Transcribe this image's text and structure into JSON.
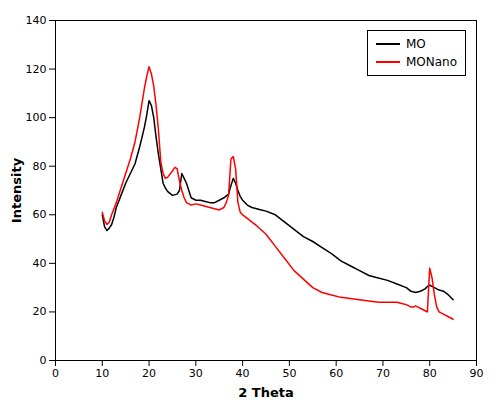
{
  "chart_data": {
    "type": "line",
    "xlabel": "2 Theta",
    "ylabel": "Intensity",
    "xlim": [
      0,
      90
    ],
    "ylim": [
      0,
      140
    ],
    "xticks": [
      0,
      10,
      20,
      30,
      40,
      50,
      60,
      70,
      80,
      90
    ],
    "yticks": [
      0,
      20,
      40,
      60,
      80,
      100,
      120,
      140
    ],
    "grid": false,
    "legend": "upper right",
    "series": [
      {
        "name": "MO",
        "color": "black",
        "x": [
          10.0,
          10.5,
          11.0,
          11.5,
          12.0,
          12.5,
          13.0,
          14.0,
          15.0,
          16.0,
          17.0,
          18.0,
          19.0,
          19.5,
          20.0,
          20.5,
          21.0,
          21.5,
          22.0,
          22.5,
          23.0,
          23.5,
          24.0,
          25.0,
          26.0,
          26.5,
          27.0,
          27.5,
          28.0,
          28.5,
          29.0,
          30.0,
          31.0,
          32.0,
          33.0,
          34.0,
          35.0,
          36.0,
          37.0,
          37.5,
          38.0,
          38.5,
          39.0,
          39.5,
          40.0,
          41.0,
          42.0,
          43.0,
          44.0,
          45.0,
          47.0,
          49.0,
          51.0,
          53.0,
          55.0,
          57.0,
          59.0,
          61.0,
          63.0,
          65.0,
          67.0,
          69.0,
          71.0,
          73.0,
          75.0,
          76.0,
          77.0,
          78.0,
          79.0,
          79.5,
          80.0,
          80.5,
          81.0,
          81.5,
          82.0,
          83.0,
          84.0,
          85.0
        ],
        "values": [
          60.0,
          55.0,
          53.5,
          54.5,
          56.0,
          59.0,
          63.0,
          68.0,
          73.0,
          77.0,
          81.0,
          88.0,
          96.0,
          101.0,
          107.0,
          105.0,
          100.0,
          92.0,
          85.0,
          79.0,
          73.0,
          71.0,
          69.5,
          68.0,
          68.5,
          70.0,
          77.0,
          75.0,
          73.0,
          70.0,
          67.0,
          66.0,
          66.0,
          65.5,
          65.0,
          65.0,
          66.0,
          67.0,
          68.5,
          72.0,
          75.0,
          73.0,
          70.0,
          67.5,
          66.0,
          64.0,
          63.0,
          62.5,
          62.0,
          61.5,
          60.0,
          57.0,
          54.0,
          51.0,
          49.0,
          46.5,
          44.0,
          41.0,
          39.0,
          37.0,
          35.0,
          34.0,
          33.0,
          31.5,
          30.0,
          28.5,
          28.0,
          28.5,
          29.5,
          30.5,
          31.0,
          30.5,
          30.0,
          29.5,
          29.0,
          28.5,
          27.0,
          25.0
        ]
      },
      {
        "name": "MONano",
        "color": "red",
        "x": [
          10.0,
          10.5,
          11.0,
          11.5,
          12.0,
          13.0,
          14.0,
          15.0,
          16.0,
          17.0,
          18.0,
          19.0,
          19.5,
          20.0,
          20.5,
          21.0,
          21.5,
          22.0,
          22.5,
          23.0,
          23.5,
          24.0,
          25.0,
          25.5,
          26.0,
          26.5,
          27.0,
          27.5,
          28.0,
          29.0,
          30.0,
          31.0,
          32.0,
          33.0,
          34.0,
          35.0,
          36.0,
          36.5,
          37.0,
          37.5,
          38.0,
          38.5,
          39.0,
          39.5,
          40.0,
          41.0,
          42.0,
          43.0,
          45.0,
          47.0,
          49.0,
          51.0,
          53.0,
          55.0,
          57.0,
          59.0,
          61.0,
          63.0,
          65.0,
          67.0,
          69.0,
          71.0,
          73.0,
          74.0,
          75.0,
          75.5,
          76.0,
          76.5,
          77.0,
          77.5,
          78.0,
          78.5,
          79.0,
          79.5,
          80.0,
          80.5,
          81.0,
          81.5,
          82.0,
          83.0,
          84.0,
          85.0
        ],
        "values": [
          61.0,
          57.5,
          56.0,
          57.0,
          60.0,
          65.0,
          71.0,
          77.0,
          83.0,
          90.0,
          100.0,
          112.0,
          117.0,
          121.0,
          118.0,
          113.0,
          105.0,
          95.0,
          82.0,
          77.0,
          75.0,
          75.5,
          78.0,
          79.5,
          79.0,
          74.0,
          70.0,
          67.0,
          65.0,
          64.0,
          64.5,
          64.0,
          63.5,
          63.0,
          62.5,
          62.0,
          63.0,
          65.0,
          68.0,
          83.0,
          84.0,
          79.0,
          65.0,
          61.0,
          60.0,
          58.5,
          57.0,
          55.5,
          52.0,
          47.0,
          42.0,
          37.0,
          33.5,
          30.0,
          28.0,
          27.0,
          26.0,
          25.5,
          25.0,
          24.5,
          24.0,
          24.0,
          24.0,
          23.5,
          23.0,
          22.5,
          22.0,
          22.0,
          22.5,
          22.0,
          21.5,
          21.0,
          20.5,
          20.0,
          38.0,
          34.0,
          27.0,
          22.0,
          20.0,
          19.0,
          18.0,
          17.0
        ]
      }
    ]
  }
}
